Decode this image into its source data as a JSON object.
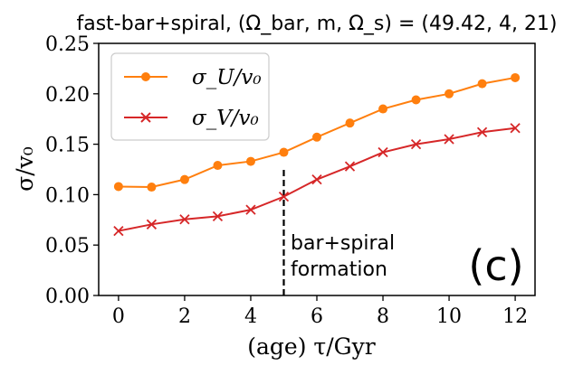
{
  "chart_data": {
    "type": "line",
    "title": "fast-bar+spiral, (Ω_bar, m, Ω_s) = (49.42, 4, 21)",
    "xlabel": "(age) τ/Gyr",
    "ylabel": "σ/v₀",
    "xlim": [
      -0.6,
      12.6
    ],
    "ylim": [
      0.0,
      0.25
    ],
    "xticks": [
      0,
      2,
      4,
      6,
      8,
      10,
      12
    ],
    "xtick_labels": [
      "0",
      "2",
      "4",
      "6",
      "8",
      "10",
      "12"
    ],
    "yticks": [
      0.0,
      0.05,
      0.1,
      0.15,
      0.2,
      0.25
    ],
    "ytick_labels": [
      "0.00",
      "0.05",
      "0.10",
      "0.15",
      "0.20",
      "0.25"
    ],
    "grid": false,
    "legend_position": "top-left",
    "x": [
      0,
      1,
      2,
      3,
      4,
      5,
      6,
      7,
      8,
      9,
      10,
      11,
      12
    ],
    "series": [
      {
        "name": "σ_U/v₀",
        "color": "#ff7f0e",
        "marker": "circle",
        "values": [
          0.108,
          0.1075,
          0.115,
          0.129,
          0.133,
          0.142,
          0.157,
          0.171,
          0.185,
          0.194,
          0.2,
          0.21,
          0.216
        ]
      },
      {
        "name": "σ_V/v₀",
        "color": "#d62728",
        "marker": "x",
        "values": [
          0.064,
          0.0705,
          0.0755,
          0.0785,
          0.085,
          0.098,
          0.115,
          0.128,
          0.142,
          0.15,
          0.155,
          0.162,
          0.166
        ]
      }
    ],
    "annotations": [
      {
        "type": "vline",
        "x": 5,
        "y_range": [
          0.0,
          0.125
        ],
        "style": "dashed",
        "color": "#000000"
      },
      {
        "type": "text",
        "lines": [
          "bar+spiral",
          "formation"
        ]
      },
      {
        "type": "panel_label",
        "text": "(c)"
      }
    ]
  }
}
